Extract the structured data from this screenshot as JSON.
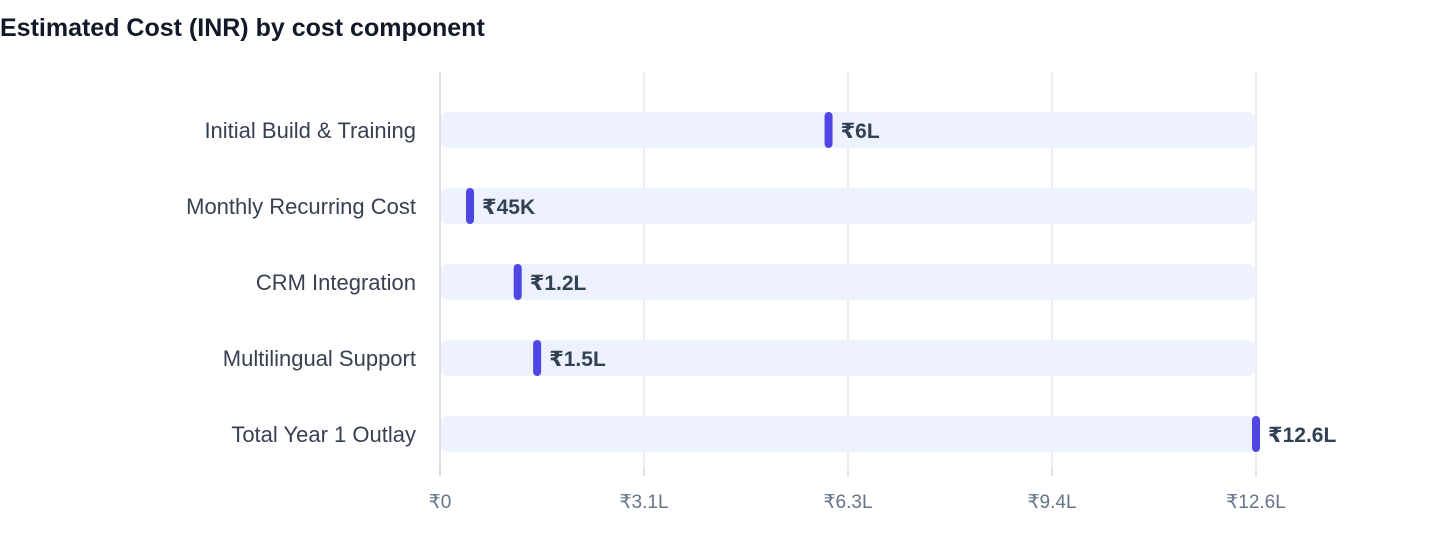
{
  "chart_data": {
    "type": "bar",
    "orientation": "horizontal",
    "title": "Estimated Cost (INR) by cost component",
    "xlabel": "",
    "ylabel": "",
    "categories": [
      "Initial Build & Training",
      "Monthly Recurring Cost",
      "CRM Integration",
      "Multilingual Support",
      "Total Year 1 Outlay"
    ],
    "values": [
      600000,
      45000,
      120000,
      150000,
      1260000
    ],
    "value_labels": [
      "₹6L",
      "₹45K",
      "₹1.2L",
      "₹1.5L",
      "₹12.6L"
    ],
    "xlim": [
      0,
      1260000
    ],
    "x_ticks": [
      0,
      315000,
      630000,
      945000,
      1260000
    ],
    "x_tick_labels": [
      "₹0",
      "₹3.1L",
      "₹6.3L",
      "₹9.4L",
      "₹12.6L"
    ],
    "grid": true,
    "legend": "none",
    "colors": {
      "marker": "#4f46e5",
      "track": "#eef2ff",
      "grid": "#e5e7eb",
      "axis": "#d1d5db"
    }
  }
}
